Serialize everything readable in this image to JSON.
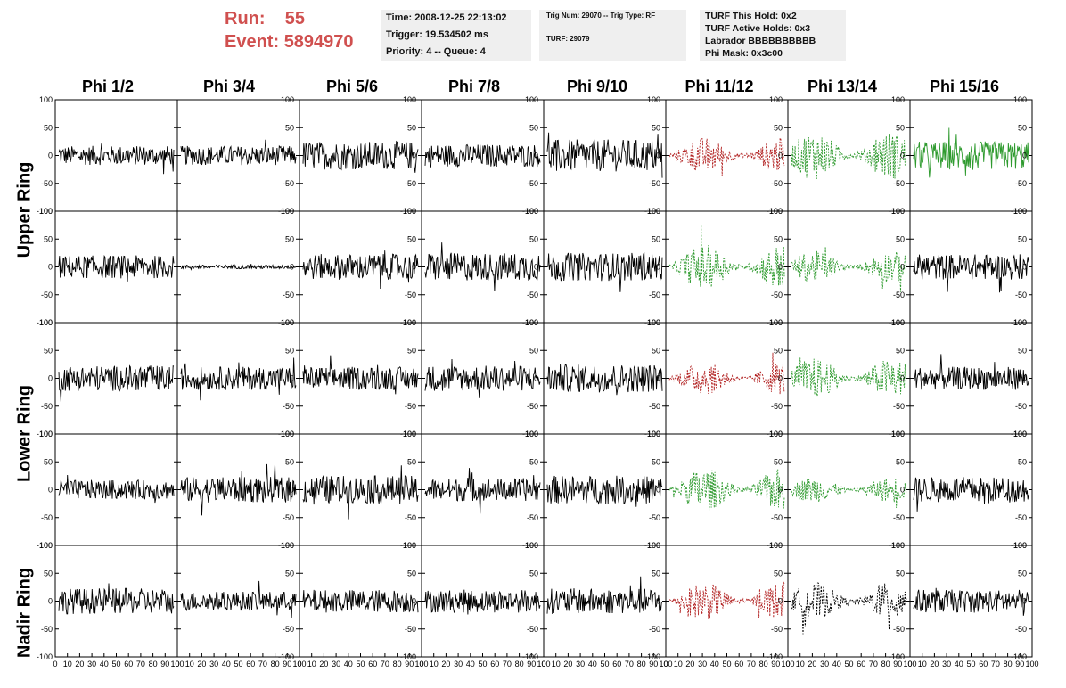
{
  "run": {
    "run_label": "Run:",
    "run_value": "55",
    "event_label": "Event:",
    "event_value": "5894970"
  },
  "info_time": {
    "time": "Time: 2008-12-25 22:13:02",
    "trigger": "Trigger: 19.534502 ms",
    "priority": "Priority: 4 -- Queue: 4"
  },
  "info_trig": {
    "trig": "Trig Num: 29070 -- Trig Type: RF",
    "turf": "TURF: 29079"
  },
  "info_turf": {
    "hold": "TURF This Hold: 0x2",
    "active": "TURF Active Holds: 0x3",
    "labrador": "Labrador BBBBBBBBBB",
    "phimask": "Phi Mask: 0x3c00"
  },
  "columns": [
    "Phi 1/2",
    "Phi 3/4",
    "Phi 5/6",
    "Phi 7/8",
    "Phi 9/10",
    "Phi 11/12",
    "Phi 13/14",
    "Phi 15/16"
  ],
  "rings": [
    "Upper Ring",
    "Lower Ring",
    "Nadir Ring"
  ],
  "axis": {
    "y_ticks": [
      "100",
      "50",
      "0",
      "-50",
      "-100"
    ],
    "x_ticks": [
      "0",
      "10",
      "20",
      "30",
      "40",
      "50",
      "60",
      "70",
      "80",
      "90",
      "100"
    ]
  },
  "colors": {
    "run_text": "#d0504f",
    "info_bg": "#efefef",
    "trace_black": "#000000",
    "trace_red": "#b22222",
    "trace_green": "#2e9a2e"
  },
  "chart_data": {
    "type": "line",
    "x_range": [
      0,
      100
    ],
    "y_range": [
      -100,
      100
    ],
    "grid": false,
    "panels_rows": 5,
    "panels_cols": 8,
    "trace_styles": [
      [
        "solid-black",
        "solid-black",
        "solid-black",
        "solid-black",
        "solid-black",
        "dashed-red",
        "dashed-green",
        "solid-green"
      ],
      [
        "solid-black",
        "solid-black",
        "solid-black",
        "solid-black",
        "solid-black",
        "dashed-green",
        "dashed-green",
        "solid-black"
      ],
      [
        "solid-black",
        "solid-black",
        "solid-black",
        "solid-black",
        "solid-black",
        "dashed-red",
        "dashed-green",
        "solid-black"
      ],
      [
        "solid-black",
        "solid-black",
        "solid-black",
        "solid-black",
        "solid-black",
        "dashed-green",
        "dashed-green",
        "solid-black"
      ],
      [
        "solid-black",
        "solid-black",
        "solid-black",
        "solid-black",
        "solid-black",
        "dashed-red",
        "dashed-black",
        "solid-black"
      ]
    ],
    "amplitudes": [
      [
        15,
        15,
        22,
        18,
        25,
        28,
        38,
        22
      ],
      [
        18,
        3,
        20,
        22,
        22,
        35,
        25,
        20
      ],
      [
        20,
        18,
        18,
        20,
        22,
        26,
        32,
        18
      ],
      [
        15,
        20,
        22,
        18,
        22,
        34,
        20,
        20
      ],
      [
        20,
        15,
        18,
        18,
        20,
        30,
        30,
        18
      ]
    ]
  }
}
